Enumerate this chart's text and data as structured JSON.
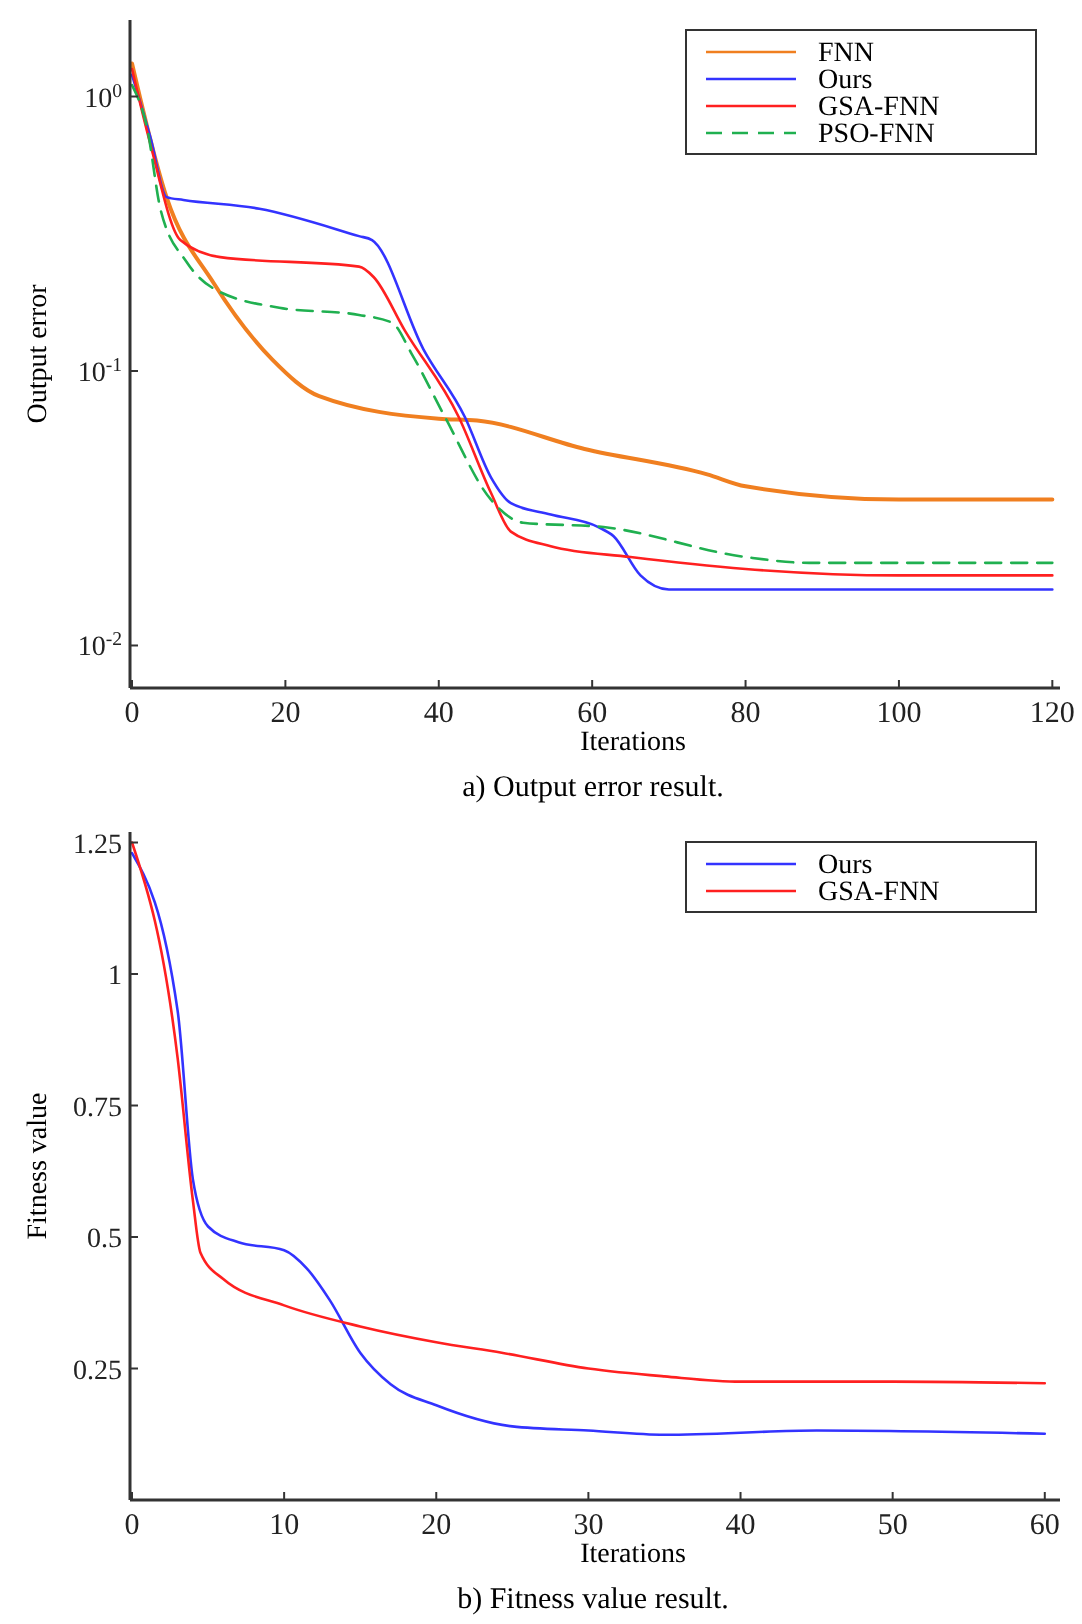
{
  "chart_data": [
    {
      "type": "line",
      "xlabel": "Iterations",
      "ylabel": "Output error",
      "log": "y",
      "legend": "top right",
      "marker": "none",
      "xlim": [
        0,
        121
      ],
      "xticks": [
        0,
        20,
        40,
        60,
        80,
        100,
        120
      ],
      "ylim": [
        0.007,
        1.9
      ],
      "yticks": [
        {
          "value": 0.01,
          "label": "10$^{-2}$"
        },
        {
          "value": 0.1,
          "label": "10$^{-1}$"
        },
        {
          "value": 1,
          "label": "10$^{0}$"
        }
      ],
      "annotations": [
        "a) Output error result."
      ],
      "series": [
        {
          "name": "FNN",
          "color": "#f07f20",
          "x": [
            0,
            4.5,
            10.6,
            18.3,
            24.4,
            40,
            45,
            59,
            75,
            80,
            100,
            120
          ],
          "values": [
            1.32,
            0.43,
            0.21,
            0.11,
            0.081,
            0.067,
            0.066,
            0.052,
            0.042,
            0.038,
            0.034,
            0.034
          ]
        },
        {
          "name": "Ours",
          "color": "#3333ff",
          "x": [
            0,
            2.4,
            4.5,
            6.7,
            16.6,
            29.6,
            31.3,
            38,
            43.4,
            46.8,
            49.4,
            54.6,
            60.8,
            62.8,
            66.3,
            70,
            80,
            100,
            120
          ],
          "values": [
            1.2,
            0.71,
            0.43,
            0.42,
            0.39,
            0.31,
            0.3,
            0.12,
            0.068,
            0.041,
            0.033,
            0.03,
            0.027,
            0.025,
            0.018,
            0.016,
            0.016,
            0.016,
            0.016
          ]
        },
        {
          "name": "GSA-FNN",
          "color": "#ff2020",
          "x": [
            0,
            2.4,
            6.3,
            11.5,
            29.6,
            31.5,
            35.6,
            42.6,
            46.8,
            49.4,
            54.6,
            65,
            80,
            100,
            120
          ],
          "values": [
            1.26,
            0.67,
            0.3,
            0.26,
            0.24,
            0.22,
            0.14,
            0.068,
            0.036,
            0.026,
            0.023,
            0.021,
            0.019,
            0.018,
            0.018
          ]
        },
        {
          "name": "PSO-FNN",
          "color": "#20b050",
          "line_style": "dashed",
          "x": [
            0,
            2,
            3.7,
            7.1,
            10.6,
            19.2,
            29.6,
            33.9,
            36.5,
            40.8,
            46.8,
            51,
            61.5,
            80,
            88.3,
            120
          ],
          "values": [
            1.1,
            0.76,
            0.39,
            0.25,
            0.2,
            0.17,
            0.16,
            0.15,
            0.115,
            0.068,
            0.034,
            0.028,
            0.027,
            0.021,
            0.02,
            0.02
          ]
        }
      ]
    },
    {
      "type": "line",
      "xlabel": "Iterations",
      "ylabel": "Fitness value",
      "legend": "top right",
      "marker": "none",
      "xlim": [
        0,
        61
      ],
      "xticks": [
        0,
        10,
        20,
        30,
        40,
        50,
        60
      ],
      "ylim": [
        0,
        1.27
      ],
      "yticks": [
        0.25,
        0.5,
        0.75,
        1,
        1.25
      ],
      "annotations": [
        "b) Fitness value result."
      ],
      "series": [
        {
          "name": "Ours",
          "color": "#3333ff",
          "x": [
            0,
            3,
            4,
            5,
            7,
            10,
            11.5,
            13,
            15,
            17,
            20,
            25,
            30,
            35,
            45,
            60
          ],
          "values": [
            1.23,
            0.93,
            0.61,
            0.52,
            0.49,
            0.475,
            0.44,
            0.38,
            0.28,
            0.22,
            0.18,
            0.14,
            0.132,
            0.124,
            0.132,
            0.126
          ]
        },
        {
          "name": "GSA-FNN",
          "color": "#ff2020",
          "x": [
            0,
            3,
            4,
            4.5,
            6,
            10,
            15,
            20,
            24.3,
            30,
            35,
            40,
            50,
            60
          ],
          "values": [
            1.25,
            0.84,
            0.57,
            0.47,
            0.42,
            0.37,
            0.33,
            0.3,
            0.28,
            0.25,
            0.235,
            0.225,
            0.225,
            0.222
          ]
        }
      ]
    }
  ]
}
